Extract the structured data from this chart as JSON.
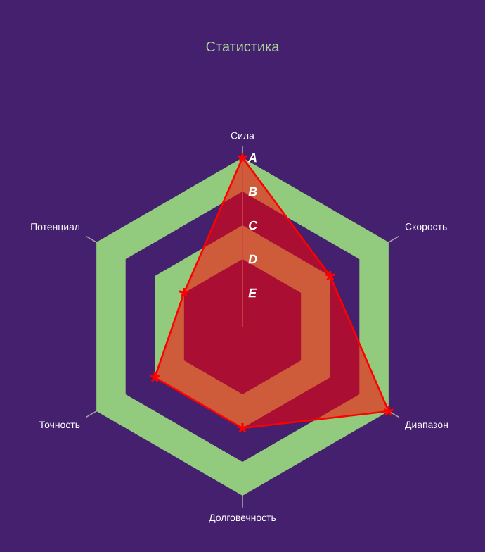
{
  "chart_data": {
    "type": "radar",
    "title": "Статистика",
    "categories": [
      "Сила",
      "Скорость",
      "Диапазон",
      "Долговечность",
      "Точность",
      "Потенциал"
    ],
    "series": [
      {
        "color": "#ff0000",
        "values": [
          5,
          3,
          5,
          3,
          3,
          2
        ]
      }
    ],
    "ylim": [
      0,
      5
    ],
    "yticks": [
      {
        "value": 1,
        "label": "E"
      },
      {
        "value": 2,
        "label": "D"
      },
      {
        "value": 3,
        "label": "C"
      },
      {
        "value": 4,
        "label": "B"
      },
      {
        "value": 5,
        "label": "A"
      }
    ],
    "grid": true,
    "marker": "star",
    "line_style": "solid"
  }
}
